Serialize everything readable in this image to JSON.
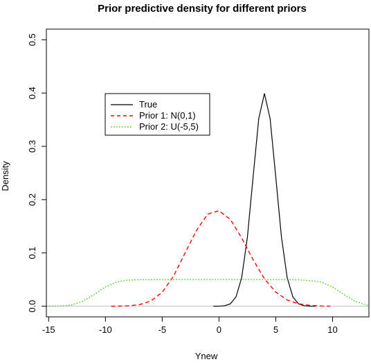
{
  "chart_data": {
    "type": "line",
    "title": "Prior predictive density for different priors",
    "xlabel": "Ynew",
    "ylabel": "Density",
    "xlim": [
      -15.2,
      13.2
    ],
    "ylim": [
      -0.02,
      0.52
    ],
    "x_ticks": [
      -15,
      -10,
      -5,
      0,
      5,
      10
    ],
    "y_ticks": [
      0.0,
      0.1,
      0.2,
      0.3,
      0.4,
      0.5
    ],
    "x_tick_labels": [
      "-15",
      "-10",
      "-5",
      "0",
      "5",
      "10"
    ],
    "y_tick_labels": [
      "0.0",
      "0.1",
      "0.2",
      "0.3",
      "0.4",
      "0.5"
    ],
    "grid": false,
    "baseline": {
      "y": 0,
      "color": "#bebebe"
    },
    "legend": {
      "placement": "upper-left",
      "entries": [
        "True",
        "Prior 1: N(0,1)",
        "Prior 2: U(-5,5)"
      ]
    },
    "series": [
      {
        "name": "True",
        "color": "#000000",
        "style": "solid",
        "x": [
          -0.5,
          0,
          0.5,
          1,
          1.5,
          2,
          2.5,
          3,
          3.5,
          4,
          4.5,
          5,
          5.5,
          6,
          6.5,
          7,
          7.5,
          8,
          8.5
        ],
        "y": [
          0.0,
          0.0001,
          0.0009,
          0.0044,
          0.0175,
          0.054,
          0.1295,
          0.242,
          0.352,
          0.399,
          0.352,
          0.242,
          0.1295,
          0.054,
          0.0175,
          0.0044,
          0.0009,
          0.0001,
          0.0
        ]
      },
      {
        "name": "Prior 1: N(0,1)",
        "color": "#ff0000",
        "style": "dashed",
        "x": [
          -9.5,
          -9,
          -8,
          -7,
          -6,
          -5,
          -4,
          -3,
          -2,
          -1,
          0,
          1,
          2,
          3,
          4,
          5,
          6,
          7,
          8,
          9,
          9.8
        ],
        "y": [
          0.0,
          0.0001,
          0.0007,
          0.0029,
          0.0097,
          0.026,
          0.0565,
          0.0993,
          0.1415,
          0.1728,
          0.1792,
          0.163,
          0.128,
          0.0873,
          0.0516,
          0.0264,
          0.0117,
          0.0045,
          0.0015,
          0.0004,
          0.0001
        ]
      },
      {
        "name": "Prior 2: U(-5,5)",
        "color": "#33cc00",
        "style": "dotted",
        "x": [
          -15.2,
          -14,
          -13,
          -12,
          -11,
          -10,
          -9,
          -8,
          -7,
          -5,
          0,
          5,
          7,
          8,
          9,
          10,
          11,
          12,
          13,
          13.2
        ],
        "y": [
          0.0,
          0.0003,
          0.0022,
          0.009,
          0.022,
          0.036,
          0.0455,
          0.049,
          0.0498,
          0.05,
          0.05,
          0.05,
          0.0495,
          0.048,
          0.0455,
          0.036,
          0.022,
          0.009,
          0.0022,
          0.0015
        ]
      }
    ]
  }
}
